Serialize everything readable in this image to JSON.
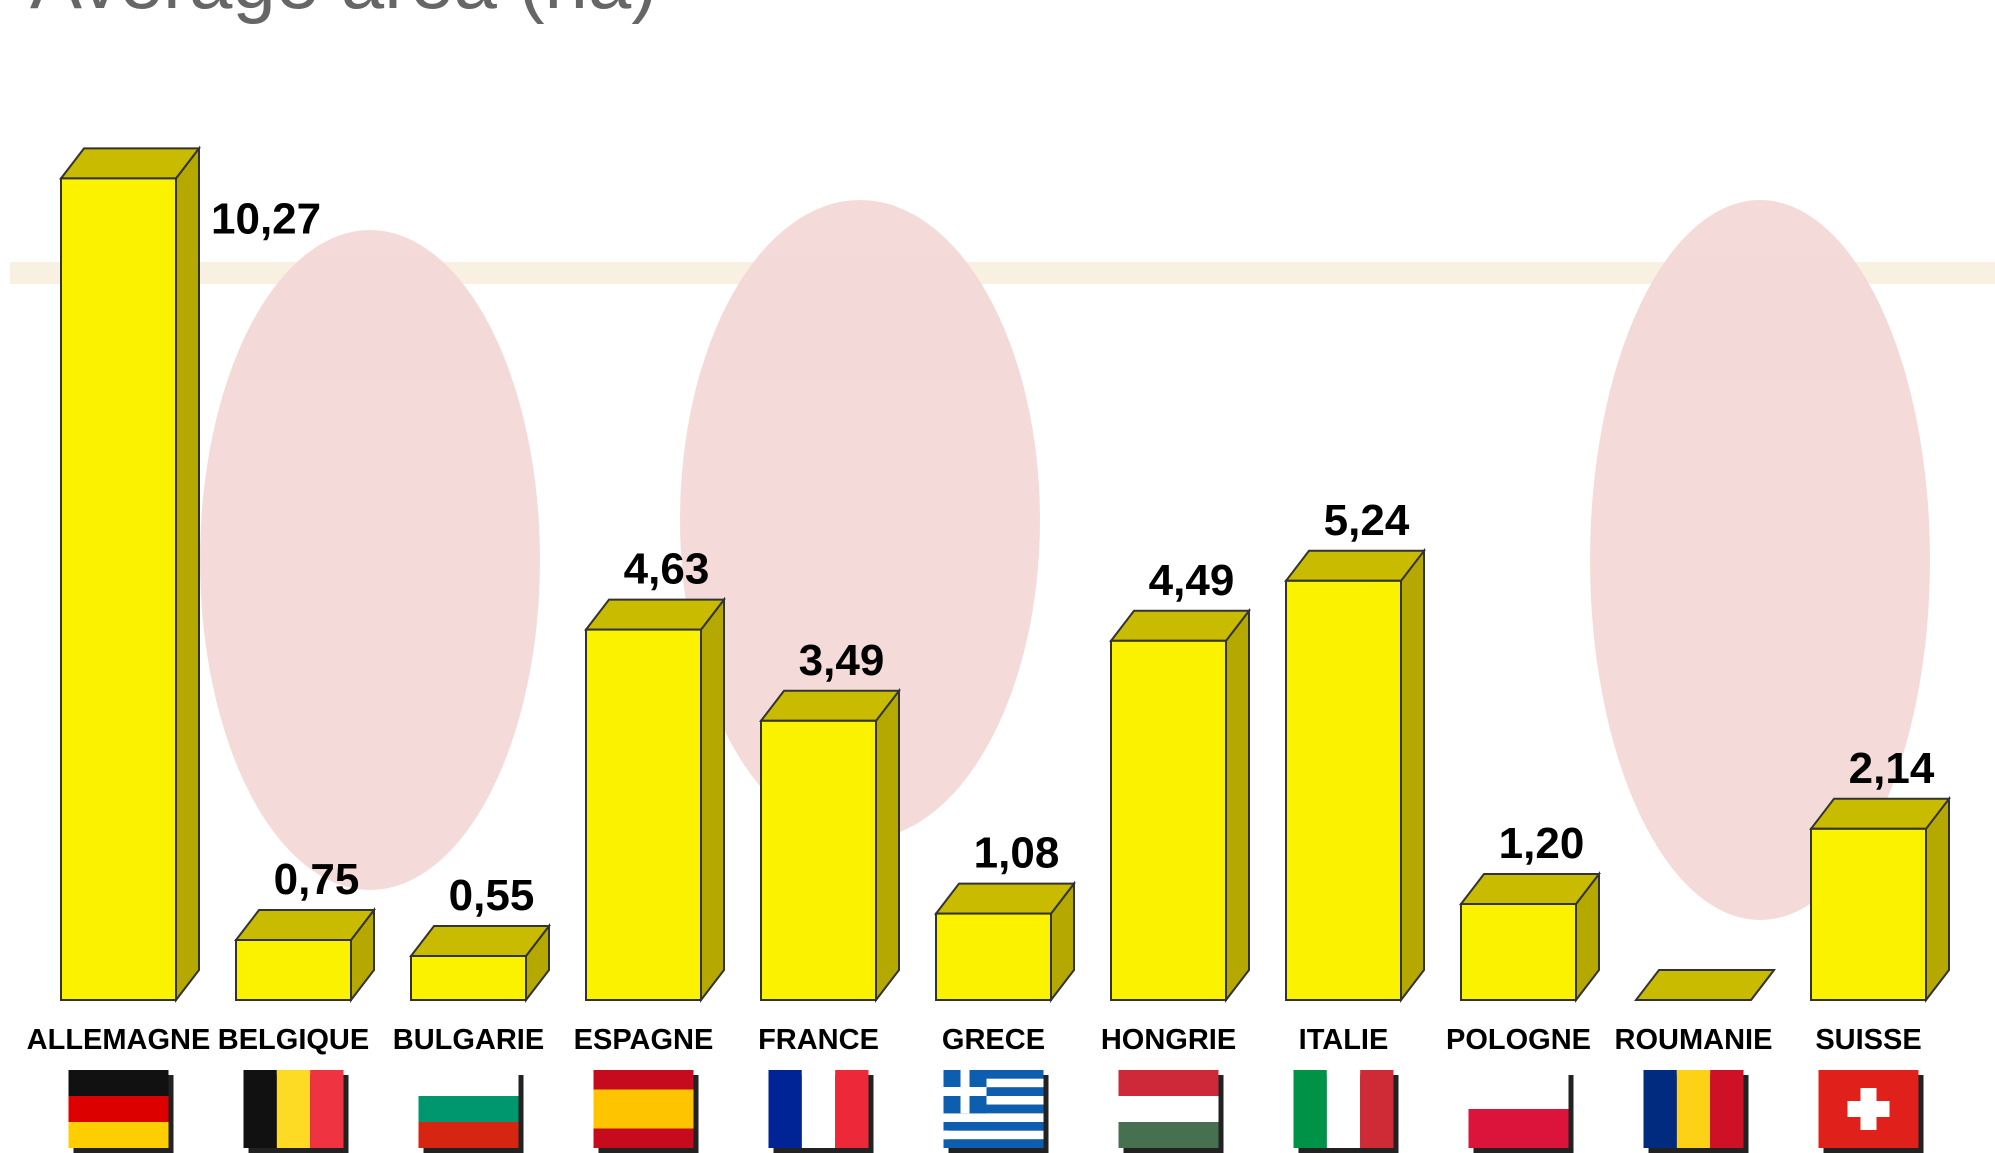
{
  "chart_data": {
    "type": "bar3d",
    "title": "Average area (ha)",
    "categories": [
      "ALLEMAGNE",
      "BELGIQUE",
      "BULGARIE",
      "ESPAGNE",
      "FRANCE",
      "GRECE",
      "HONGRIE",
      "ITALIE",
      "POLOGNE",
      "ROUMANIE",
      "SUISSE"
    ],
    "values": [
      10.27,
      0.75,
      0.55,
      4.63,
      3.49,
      1.08,
      4.49,
      5.24,
      1.2,
      0,
      2.14
    ],
    "value_labels": [
      "10,27",
      "0,75",
      "0,55",
      "4,63",
      "3,49",
      "1,08",
      "4,49",
      "5,24",
      "1,20",
      null,
      "2,14"
    ],
    "color": "#fbf200",
    "ylim": [
      0,
      11
    ]
  }
}
